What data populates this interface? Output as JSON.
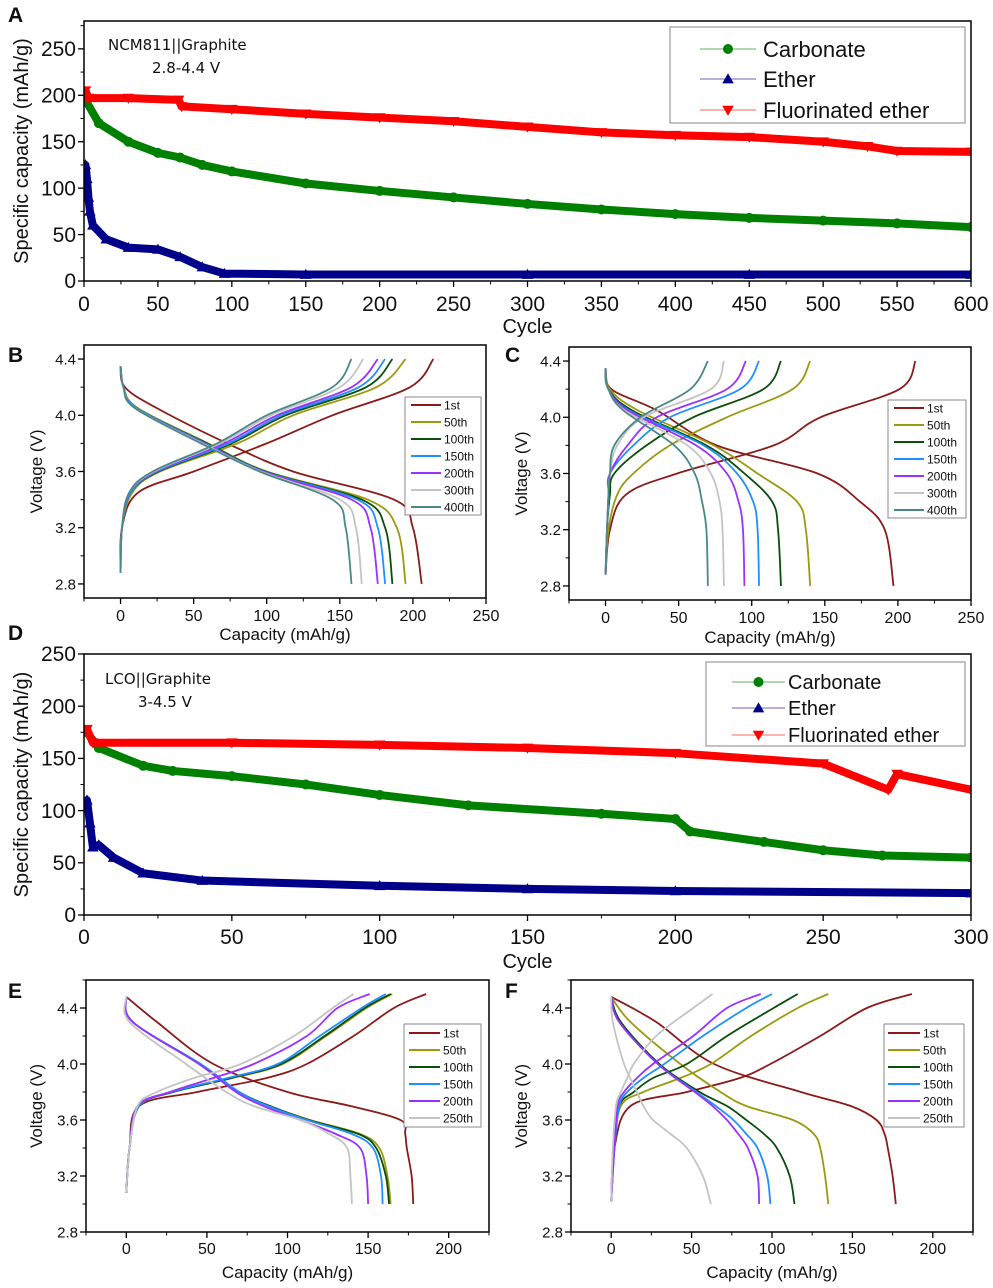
{
  "chart_data": [
    {
      "panel": "A",
      "type": "line",
      "title": "",
      "annotation": [
        "NCM811||Graphite",
        "2.8-4.4 V"
      ],
      "xlabel": "Cycle",
      "ylabel": "Specific capacity (mAh/g)",
      "xlim": [
        0,
        600
      ],
      "ylim": [
        0,
        280
      ],
      "xticks": [
        0,
        50,
        100,
        150,
        200,
        250,
        300,
        350,
        400,
        450,
        500,
        550,
        600
      ],
      "yticks": [
        0,
        50,
        100,
        150,
        200,
        250
      ],
      "grid": false,
      "legend": "top-right",
      "series": [
        {
          "name": "Carbonate",
          "color": "#008000",
          "marker": "circle",
          "x": [
            1,
            10,
            30,
            50,
            65,
            80,
            100,
            150,
            200,
            250,
            300,
            350,
            400,
            450,
            500,
            550,
            600
          ],
          "y": [
            195,
            170,
            150,
            138,
            133,
            125,
            118,
            105,
            97,
            90,
            83,
            77,
            72,
            68,
            65,
            62,
            58
          ]
        },
        {
          "name": "Ether",
          "color": "#00008b",
          "marker": "triangle-up",
          "x": [
            1,
            2,
            3,
            4,
            6,
            15,
            30,
            50,
            65,
            80,
            95,
            150,
            300,
            450,
            600
          ],
          "y": [
            125,
            110,
            90,
            75,
            60,
            45,
            36,
            34,
            26,
            15,
            8,
            7,
            7,
            7,
            7
          ]
        },
        {
          "name": "Fluorinated ether",
          "color": "#ff0000",
          "marker": "triangle-down",
          "x": [
            1,
            3,
            30,
            64,
            66,
            100,
            150,
            200,
            250,
            300,
            350,
            400,
            450,
            500,
            530,
            550,
            600
          ],
          "y": [
            205,
            197,
            197,
            195,
            188,
            185,
            180,
            176,
            172,
            166,
            160,
            157,
            155,
            150,
            145,
            140,
            139
          ]
        }
      ]
    },
    {
      "panel": "B",
      "type": "line",
      "title": "",
      "xlabel": "Capacity (mAh/g)",
      "ylabel": "Voltage (V)",
      "xlim": [
        -25,
        250
      ],
      "ylim": [
        2.7,
        4.5
      ],
      "xticks": [
        0,
        50,
        100,
        150,
        200,
        250
      ],
      "yticks": [
        2.8,
        3.2,
        3.6,
        4.0,
        4.4
      ],
      "grid": false,
      "legend": "right",
      "charge_voltages": [
        2.88,
        3.2,
        3.45,
        3.6,
        3.8,
        4.0,
        4.2,
        4.4
      ],
      "discharge_voltages": [
        4.35,
        4.2,
        4.05,
        3.8,
        3.6,
        3.4,
        3.2,
        2.8
      ],
      "series": [
        {
          "name": "1st",
          "color": "#8b1a1a",
          "charge_capacity": [
            0,
            1,
            12,
            50,
            100,
            145,
            198,
            214
          ],
          "discharge_capacity": [
            0,
            3,
            25,
            73,
            118,
            187,
            200,
            206
          ]
        },
        {
          "name": "50th",
          "color": "#9a9a10",
          "charge_capacity": [
            0,
            1,
            8,
            27,
            80,
            118,
            175,
            195
          ],
          "discharge_capacity": [
            0,
            2,
            12,
            60,
            100,
            169,
            189,
            195
          ]
        },
        {
          "name": "100th",
          "color": "#0b4d0b",
          "charge_capacity": [
            0,
            1,
            7,
            26,
            76,
            113,
            168,
            186
          ],
          "discharge_capacity": [
            0,
            2,
            11,
            59,
            99,
            165,
            181,
            186
          ]
        },
        {
          "name": "150th",
          "color": "#1e90ff",
          "charge_capacity": [
            0,
            1,
            7,
            25,
            74,
            110,
            163,
            181
          ],
          "discharge_capacity": [
            0,
            2,
            11,
            58,
            98,
            162,
            176,
            181
          ]
        },
        {
          "name": "200th",
          "color": "#9b30ff",
          "charge_capacity": [
            0,
            1,
            6,
            24,
            71,
            107,
            158,
            176
          ],
          "discharge_capacity": [
            0,
            2,
            10,
            57,
            97,
            158,
            171,
            176
          ]
        },
        {
          "name": "300th",
          "color": "#c4c4c4",
          "charge_capacity": [
            0,
            1,
            6,
            23,
            68,
            103,
            150,
            166
          ],
          "discharge_capacity": [
            0,
            2,
            10,
            56,
            96,
            150,
            161,
            165
          ]
        },
        {
          "name": "400th",
          "color": "#4a8888",
          "charge_capacity": [
            0,
            1,
            6,
            22,
            66,
            100,
            145,
            158
          ],
          "discharge_capacity": [
            0,
            2,
            10,
            55,
            95,
            145,
            154,
            158
          ]
        }
      ]
    },
    {
      "panel": "C",
      "type": "line",
      "title": "",
      "xlabel": "Capacity (mAh/g)",
      "ylabel": "Voltage (V)",
      "xlim": [
        -25,
        250
      ],
      "ylim": [
        2.7,
        4.5
      ],
      "xticks": [
        0,
        50,
        100,
        150,
        200,
        250
      ],
      "yticks": [
        2.8,
        3.2,
        3.6,
        4.0,
        4.4
      ],
      "grid": false,
      "legend": "right",
      "charge_voltages": [
        2.88,
        3.2,
        3.45,
        3.6,
        3.8,
        4.0,
        4.2,
        4.4
      ],
      "discharge_voltages": [
        4.35,
        4.2,
        4.05,
        3.8,
        3.6,
        3.4,
        3.2,
        2.8
      ],
      "series": [
        {
          "name": "1st",
          "color": "#8b1a1a",
          "charge_capacity": [
            0,
            3,
            14,
            49,
            115,
            147,
            201,
            212
          ],
          "discharge_capacity": [
            0,
            4,
            35,
            76,
            145,
            174,
            191,
            197
          ]
        },
        {
          "name": "50th",
          "color": "#9a9a10",
          "charge_capacity": [
            0,
            2,
            8,
            19,
            44,
            83,
            128,
            140
          ],
          "discharge_capacity": [
            0,
            3,
            22,
            74,
            104,
            131,
            137,
            140
          ]
        },
        {
          "name": "100th",
          "color": "#0b4d0b",
          "charge_capacity": [
            0,
            1,
            3,
            6,
            28,
            60,
            108,
            120
          ],
          "discharge_capacity": [
            0,
            2,
            18,
            69,
            95,
            114,
            118,
            120
          ]
        },
        {
          "name": "150th",
          "color": "#1e90ff",
          "charge_capacity": [
            0,
            1,
            2,
            3,
            19,
            44,
            92,
            105
          ],
          "discharge_capacity": [
            0,
            2,
            16,
            67,
            90,
            101,
            104,
            105
          ]
        },
        {
          "name": "200th",
          "color": "#9b30ff",
          "charge_capacity": [
            0,
            1,
            2,
            3,
            15,
            35,
            83,
            96
          ],
          "discharge_capacity": [
            0,
            2,
            15,
            62,
            83,
            91,
            94,
            95
          ]
        },
        {
          "name": "300th",
          "color": "#c4c4c4",
          "charge_capacity": [
            0,
            1,
            2,
            3,
            8,
            26,
            72,
            81
          ],
          "discharge_capacity": [
            0,
            2,
            13,
            56,
            72,
            78,
            80,
            81
          ]
        },
        {
          "name": "400th",
          "color": "#4a8888",
          "charge_capacity": [
            0,
            1,
            2,
            3,
            6,
            24,
            58,
            70
          ],
          "discharge_capacity": [
            0,
            2,
            12,
            47,
            61,
            66,
            69,
            70
          ]
        }
      ]
    },
    {
      "panel": "D",
      "type": "line",
      "title": "",
      "annotation": [
        "LCO||Graphite",
        "3-4.5 V"
      ],
      "xlabel": "Cycle",
      "ylabel": "Specific capacity (mAh/g)",
      "xlim": [
        0,
        300
      ],
      "ylim": [
        0,
        250
      ],
      "xticks": [
        0,
        50,
        100,
        150,
        200,
        250,
        300
      ],
      "yticks": [
        0,
        50,
        100,
        150,
        200,
        250
      ],
      "grid": false,
      "legend": "top-right",
      "series": [
        {
          "name": "Carbonate",
          "color": "#008000",
          "marker": "circle",
          "x": [
            1,
            5,
            20,
            30,
            50,
            75,
            100,
            130,
            175,
            200,
            205,
            230,
            250,
            270,
            300
          ],
          "y": [
            175,
            160,
            143,
            138,
            133,
            125,
            115,
            105,
            97,
            92,
            80,
            70,
            62,
            57,
            55
          ]
        },
        {
          "name": "Ether",
          "color": "#00008b",
          "marker": "triangle-up",
          "x": [
            1,
            2,
            3,
            5,
            10,
            20,
            40,
            100,
            150,
            200,
            300
          ],
          "y": [
            110,
            88,
            65,
            67,
            55,
            40,
            33,
            28,
            25,
            23,
            21
          ]
        },
        {
          "name": "Fluorinated ether",
          "color": "#ff0000",
          "marker": "triangle-down",
          "x": [
            1,
            3,
            50,
            100,
            150,
            200,
            250,
            272,
            275,
            300
          ],
          "y": [
            178,
            165,
            165,
            163,
            160,
            155,
            145,
            120,
            135,
            120
          ]
        }
      ]
    },
    {
      "panel": "E",
      "type": "line",
      "title": "",
      "xlabel": "Capacity (mAh/g)",
      "ylabel": "Voltage (V)",
      "xlim": [
        -25,
        225
      ],
      "ylim": [
        2.8,
        4.6
      ],
      "xticks": [
        0,
        50,
        100,
        150,
        200
      ],
      "yticks": [
        2.8,
        3.2,
        3.6,
        4.0,
        4.4
      ],
      "grid": false,
      "legend": "right",
      "charge_voltages": [
        3.08,
        3.4,
        3.7,
        3.8,
        3.9,
        4.0,
        4.2,
        4.4,
        4.5
      ],
      "discharge_voltages": [
        4.48,
        4.3,
        4.0,
        3.8,
        3.7,
        3.6,
        3.5,
        3.4,
        3.2,
        3.0
      ],
      "series": [
        {
          "name": "1st",
          "color": "#8b1a1a",
          "charge_capacity": [
            0,
            2,
            8,
            44,
            87,
            112,
            141,
            166,
            186
          ],
          "discharge_capacity": [
            0,
            19,
            54,
            100,
            139,
            170,
            173,
            174,
            177,
            178
          ]
        },
        {
          "name": "50th",
          "color": "#9a9a10",
          "charge_capacity": [
            0,
            2,
            8,
            29,
            66,
            97,
            124,
            149,
            165
          ],
          "discharge_capacity": [
            0,
            4,
            46,
            70,
            89,
            114,
            145,
            157,
            162,
            164
          ]
        },
        {
          "name": "100th",
          "color": "#0b4d0b",
          "charge_capacity": [
            0,
            2,
            8,
            29,
            65,
            96,
            123,
            148,
            164
          ],
          "discharge_capacity": [
            0,
            4,
            46,
            70,
            89,
            113,
            144,
            155,
            161,
            163
          ]
        },
        {
          "name": "150th",
          "color": "#1e90ff",
          "charge_capacity": [
            0,
            2,
            8,
            28,
            63,
            94,
            120,
            146,
            161
          ],
          "discharge_capacity": [
            0,
            4,
            46,
            70,
            88,
            112,
            140,
            153,
            158,
            159
          ]
        },
        {
          "name": "200th",
          "color": "#9b30ff",
          "charge_capacity": [
            0,
            2,
            7,
            27,
            54,
            79,
            112,
            131,
            151
          ],
          "discharge_capacity": [
            0,
            4,
            45,
            68,
            85,
            108,
            130,
            145,
            149,
            150
          ]
        },
        {
          "name": "250th",
          "color": "#c4c4c4",
          "charge_capacity": [
            0,
            2,
            7,
            19,
            42,
            71,
            104,
            128,
            141
          ],
          "discharge_capacity": [
            0,
            2,
            37,
            62,
            79,
            108,
            126,
            137,
            139,
            140
          ]
        }
      ]
    },
    {
      "panel": "F",
      "type": "line",
      "title": "",
      "xlabel": "Capacity (mAh/g)",
      "ylabel": "Voltage (V)",
      "xlim": [
        -25,
        225
      ],
      "ylim": [
        2.8,
        4.6
      ],
      "xticks": [
        0,
        50,
        100,
        150,
        200
      ],
      "yticks": [
        2.8,
        3.2,
        3.6,
        4.0,
        4.4
      ],
      "grid": false,
      "legend": "right",
      "charge_voltages": [
        3.02,
        3.4,
        3.7,
        3.8,
        3.9,
        4.0,
        4.2,
        4.4,
        4.5
      ],
      "discharge_voltages": [
        4.48,
        4.3,
        4.0,
        3.8,
        3.7,
        3.6,
        3.5,
        3.4,
        3.2,
        3.0
      ],
      "series": [
        {
          "name": "1st",
          "color": "#8b1a1a",
          "charge_capacity": [
            0,
            2,
            12,
            47,
            80,
            99,
            130,
            159,
            187
          ],
          "discharge_capacity": [
            0,
            28,
            64,
            118,
            149,
            165,
            170,
            172,
            175,
            177
          ]
        },
        {
          "name": "50th",
          "color": "#9a9a10",
          "charge_capacity": [
            0,
            2,
            6,
            20,
            43,
            62,
            87,
            116,
            135
          ],
          "discharge_capacity": [
            0,
            12,
            43,
            68,
            84,
            113,
            126,
            130,
            133,
            135
          ]
        },
        {
          "name": "100th",
          "color": "#0b4d0b",
          "charge_capacity": [
            0,
            2,
            5,
            14,
            26,
            47,
            72,
            101,
            116
          ],
          "discharge_capacity": [
            0,
            6,
            30,
            55,
            72,
            84,
            95,
            103,
            111,
            114
          ]
        },
        {
          "name": "150th",
          "color": "#1e90ff",
          "charge_capacity": [
            0,
            2,
            5,
            10,
            20,
            33,
            57,
            84,
            100
          ],
          "discharge_capacity": [
            0,
            5,
            29,
            53,
            65,
            76,
            84,
            91,
            97,
            99
          ]
        },
        {
          "name": "200th",
          "color": "#9b30ff",
          "charge_capacity": [
            0,
            2,
            4,
            8,
            16,
            26,
            51,
            72,
            93
          ],
          "discharge_capacity": [
            0,
            5,
            29,
            52,
            63,
            72,
            79,
            85,
            91,
            92
          ]
        },
        {
          "name": "250th",
          "color": "#c4c4c4",
          "charge_capacity": [
            0,
            1,
            3,
            6,
            10,
            14,
            28,
            51,
            63
          ],
          "discharge_capacity": [
            0,
            1,
            8,
            16,
            20,
            26,
            37,
            47,
            57,
            62
          ]
        }
      ]
    }
  ]
}
